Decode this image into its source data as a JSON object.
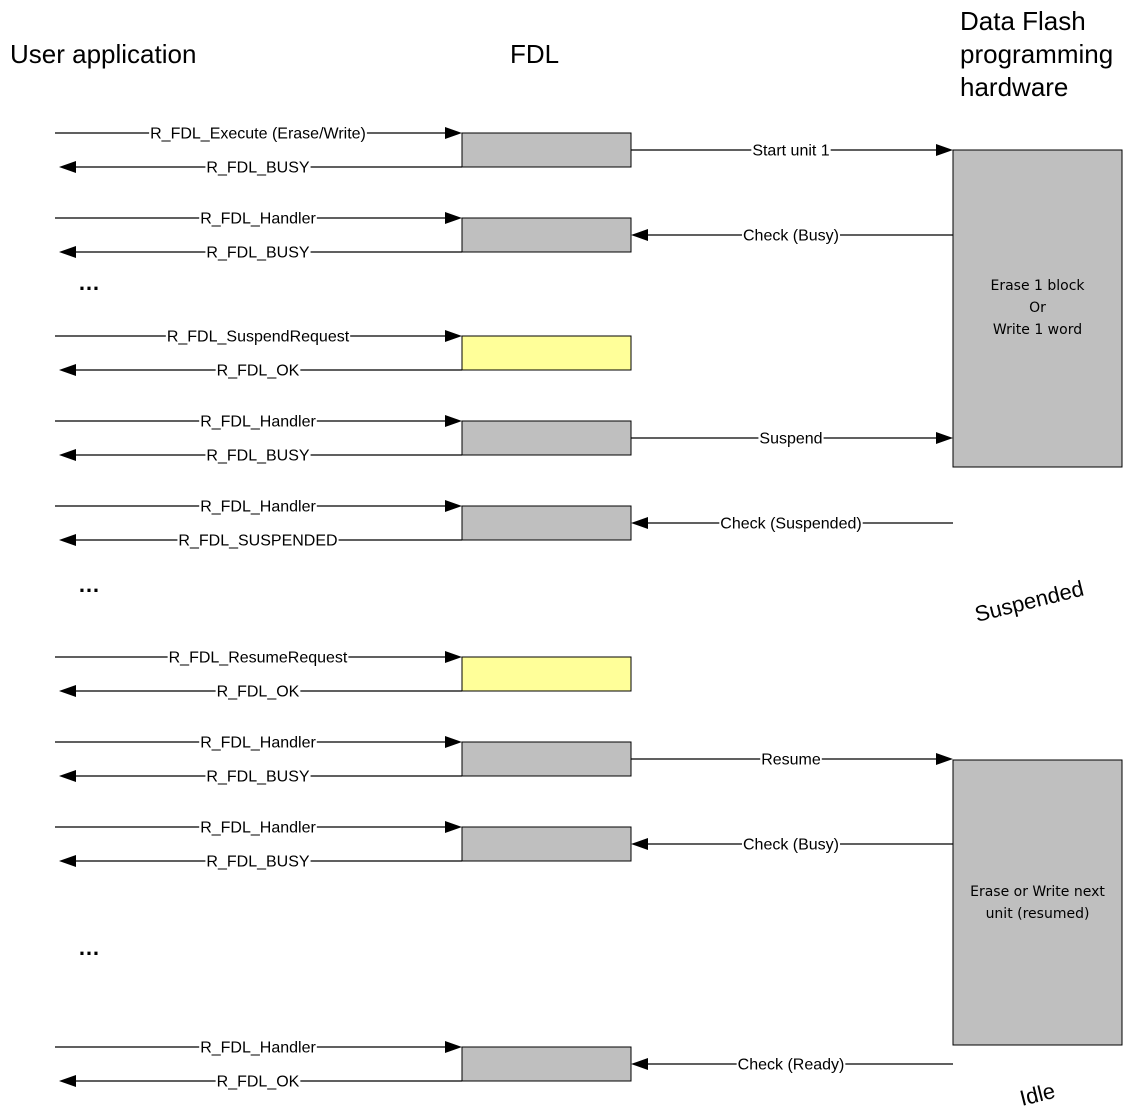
{
  "headers": {
    "user_application": "User application",
    "fdl": "FDL",
    "hardware_line1": "Data Flash",
    "hardware_line2": "programming",
    "hardware_line3": "hardware"
  },
  "colors": {
    "fdl_box_normal": "#bfbfbf",
    "fdl_box_highlight": "#ffff99",
    "hardware_box": "#bfbfbf"
  },
  "ellipsis": "…",
  "steps": [
    {
      "call": "R_FDL_Execute (Erase/Write)",
      "ret": "R_FDL_BUSY",
      "box": "normal",
      "hw_label": "Start unit 1",
      "hw_dir": "to_hw"
    },
    {
      "call": "R_FDL_Handler",
      "ret": "R_FDL_BUSY",
      "box": "normal",
      "hw_label": "Check (Busy)",
      "hw_dir": "to_fdl"
    },
    {
      "ellipsis": true
    },
    {
      "call": "R_FDL_SuspendRequest",
      "ret": "R_FDL_OK",
      "box": "highlight"
    },
    {
      "call": "R_FDL_Handler",
      "ret": "R_FDL_BUSY",
      "box": "normal",
      "hw_label": "Suspend",
      "hw_dir": "to_hw"
    },
    {
      "call": "R_FDL_Handler",
      "ret": "R_FDL_SUSPENDED",
      "box": "normal",
      "hw_label": "Check (Suspended)",
      "hw_dir": "to_fdl"
    },
    {
      "ellipsis": true
    },
    {
      "call": "R_FDL_ResumeRequest",
      "ret": "R_FDL_OK",
      "box": "highlight"
    },
    {
      "call": "R_FDL_Handler",
      "ret": "R_FDL_BUSY",
      "box": "normal",
      "hw_label": "Resume",
      "hw_dir": "to_hw"
    },
    {
      "call": "R_FDL_Handler",
      "ret": "R_FDL_BUSY",
      "box": "normal",
      "hw_label": "Check (Busy)",
      "hw_dir": "to_fdl"
    },
    {
      "ellipsis": true
    },
    {
      "call": "R_FDL_Handler",
      "ret": "R_FDL_OK",
      "box": "normal",
      "hw_label": "Check (Ready)",
      "hw_dir": "to_fdl"
    }
  ],
  "hardware_blocks": [
    {
      "lines": [
        "Erase 1 block",
        "Or",
        "Write 1 word"
      ]
    },
    {
      "lines": [
        "Erase or Write next",
        "unit (resumed)"
      ]
    }
  ],
  "states": {
    "suspended": "Suspended",
    "idle": "Idle"
  }
}
